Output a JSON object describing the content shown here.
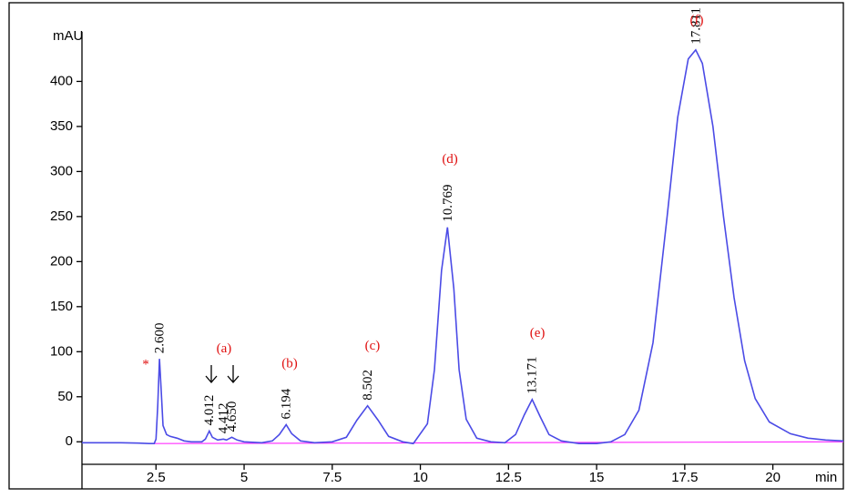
{
  "chart_data": {
    "type": "line",
    "x_label": "min",
    "y_label": "mAU",
    "xlim": [
      0.4,
      22
    ],
    "ylim": [
      -25,
      455
    ],
    "xticks": [
      2.5,
      5,
      7.5,
      10,
      12.5,
      15,
      17.5,
      20
    ],
    "yticks": [
      0,
      50,
      100,
      150,
      200,
      250,
      300,
      350,
      400
    ],
    "series": [
      {
        "color": "#4b4be6",
        "x": [
          0.4,
          1,
          1.5,
          2.0,
          2.3,
          2.45,
          2.5,
          2.55,
          2.6,
          2.65,
          2.7,
          2.8,
          2.9,
          3.1,
          3.3,
          3.5,
          3.8,
          3.9,
          4.012,
          4.1,
          4.25,
          4.412,
          4.5,
          4.65,
          4.8,
          5.0,
          5.5,
          5.8,
          6.0,
          6.194,
          6.35,
          6.6,
          7.0,
          7.5,
          7.9,
          8.2,
          8.502,
          8.8,
          9.1,
          9.5,
          9.8,
          10.2,
          10.4,
          10.6,
          10.769,
          10.95,
          11.1,
          11.3,
          11.6,
          12.0,
          12.4,
          12.7,
          12.95,
          13.171,
          13.4,
          13.65,
          14.0,
          14.5,
          15.0,
          15.4,
          15.8,
          16.2,
          16.6,
          17.0,
          17.3,
          17.6,
          17.811,
          18.0,
          18.3,
          18.6,
          18.9,
          19.2,
          19.5,
          19.9,
          20.5,
          21.0,
          21.5,
          22
        ],
        "values": [
          -1,
          -1,
          -1,
          -1.5,
          -2,
          -2,
          3,
          40,
          92,
          55,
          18,
          8,
          6,
          4,
          1,
          0,
          0,
          3,
          12,
          5,
          2,
          3,
          2,
          5,
          2,
          0,
          -1,
          1,
          8,
          19,
          9,
          1,
          -1,
          0,
          5,
          24,
          40,
          24,
          6,
          0,
          -2,
          20,
          80,
          190,
          238,
          170,
          80,
          25,
          4,
          0,
          -1,
          8,
          30,
          47,
          28,
          8,
          1,
          -2,
          -2,
          0,
          8,
          35,
          110,
          250,
          360,
          425,
          435,
          420,
          350,
          250,
          160,
          90,
          48,
          22,
          9,
          4,
          2,
          1
        ]
      },
      {
        "color": "#ff33ff",
        "x": [
          2.45,
          22
        ],
        "values": [
          -2,
          0
        ]
      }
    ],
    "peaks": [
      {
        "label": "2.600",
        "x": 2.6,
        "y": 92
      },
      {
        "label": "4.012",
        "x": 4.012,
        "y": 12
      },
      {
        "label": "4.412",
        "x": 4.412,
        "y": 3
      },
      {
        "label": "4.650",
        "x": 4.65,
        "y": 5
      },
      {
        "label": "6.194",
        "x": 6.194,
        "y": 19
      },
      {
        "label": "8.502",
        "x": 8.502,
        "y": 40
      },
      {
        "label": "10.769",
        "x": 10.769,
        "y": 238
      },
      {
        "label": "13.171",
        "x": 13.171,
        "y": 47
      },
      {
        "label": "17.811",
        "x": 17.811,
        "y": 435
      }
    ],
    "tags": [
      {
        "label": "*",
        "x": 2.21,
        "y": 85
      },
      {
        "label": "(a)",
        "x": 4.43,
        "y": 103
      },
      {
        "label": "(b)",
        "x": 6.29,
        "y": 86
      },
      {
        "label": "(c)",
        "x": 8.64,
        "y": 106
      },
      {
        "label": "(d)",
        "x": 10.84,
        "y": 313
      },
      {
        "label": "(e)",
        "x": 13.32,
        "y": 120
      },
      {
        "label": "(f)",
        "x": 17.84,
        "y": 467
      }
    ],
    "tag_color": "#e01010"
  }
}
